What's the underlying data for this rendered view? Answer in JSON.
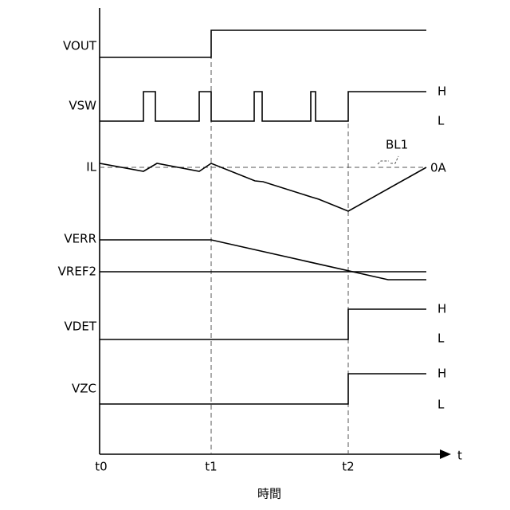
{
  "signals": [
    {
      "label": "VOUT"
    },
    {
      "label": "VSW",
      "high": "H",
      "low": "L"
    },
    {
      "label": "IL",
      "reference": "0A",
      "annotation": "BL1"
    },
    {
      "label": "VERR"
    },
    {
      "label": "VREF2"
    },
    {
      "label": "VDET",
      "high": "H",
      "low": "L"
    },
    {
      "label": "VZC",
      "high": "H",
      "low": "L"
    }
  ],
  "time_axis": {
    "ticks": [
      "t0",
      "t1",
      "t2"
    ],
    "arrow_label": "t",
    "title": "時間"
  }
}
